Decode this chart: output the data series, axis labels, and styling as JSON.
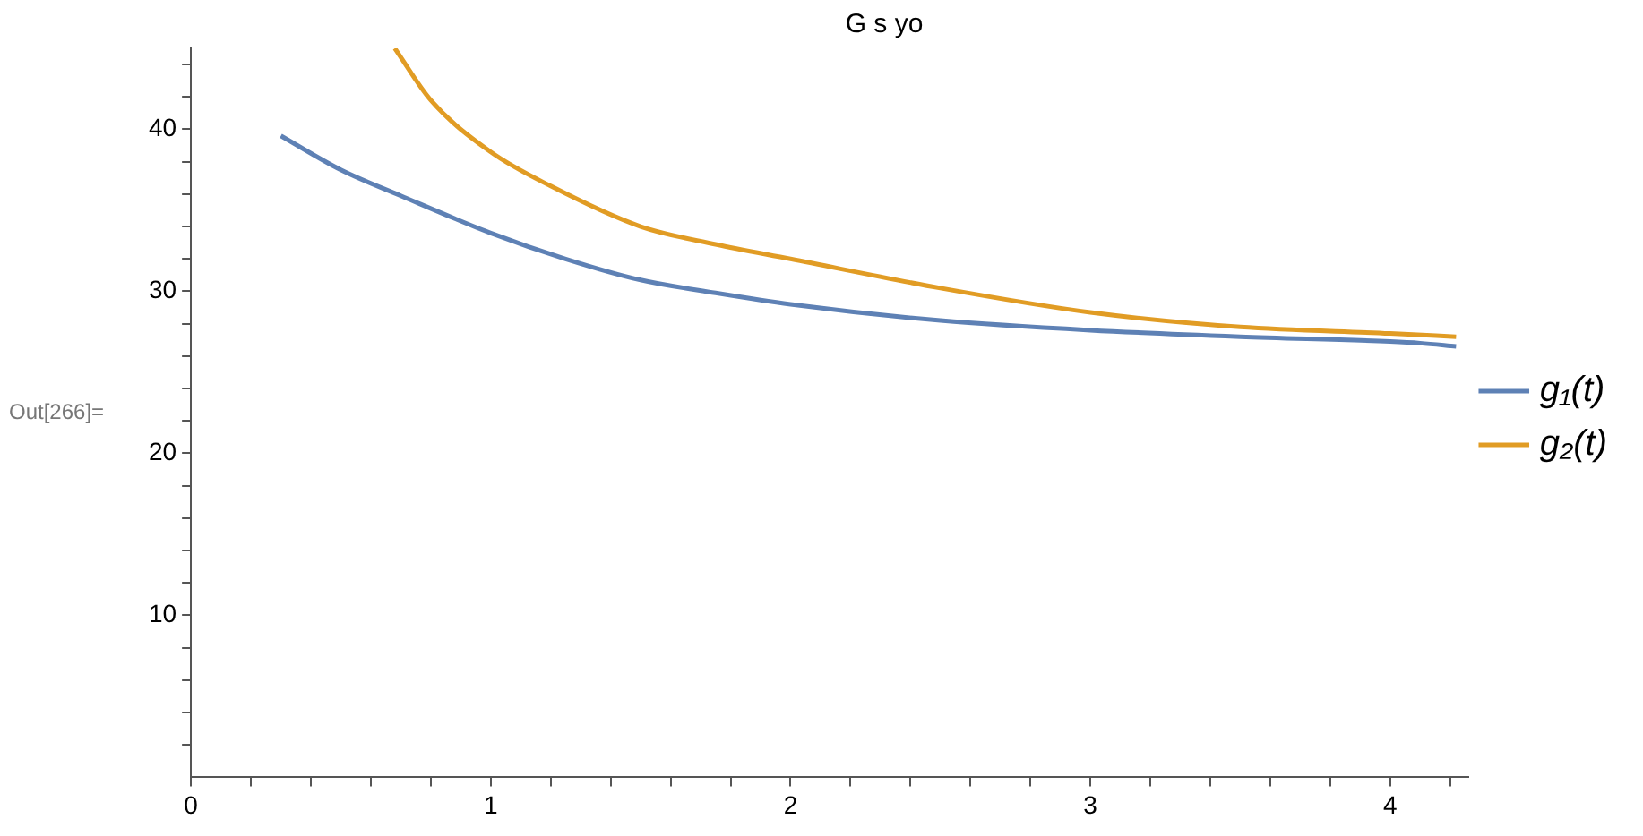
{
  "chart_data": {
    "type": "line",
    "title": "G s yo",
    "annotations": [
      "Out[266]="
    ],
    "xlim": [
      0,
      4.26
    ],
    "ylim": [
      0,
      45
    ],
    "xticks": [
      0,
      {
        "value": 0.2,
        "label": null
      },
      {
        "value": 0.4,
        "label": null
      },
      {
        "value": 0.6,
        "label": null
      },
      {
        "value": 0.8,
        "label": null
      },
      1,
      {
        "value": 1.2,
        "label": null
      },
      {
        "value": 1.4,
        "label": null
      },
      {
        "value": 1.6,
        "label": null
      },
      {
        "value": 1.8,
        "label": null
      },
      2,
      {
        "value": 2.2,
        "label": null
      },
      {
        "value": 2.4,
        "label": null
      },
      {
        "value": 2.6,
        "label": null
      },
      {
        "value": 2.8,
        "label": null
      },
      3,
      {
        "value": 3.2,
        "label": null
      },
      {
        "value": 3.4,
        "label": null
      },
      {
        "value": 3.6,
        "label": null
      },
      {
        "value": 3.8,
        "label": null
      },
      4,
      {
        "value": 4.2,
        "label": null
      }
    ],
    "yticks": [
      {
        "value": 2,
        "label": null
      },
      {
        "value": 4,
        "label": null
      },
      {
        "value": 6,
        "label": null
      },
      {
        "value": 8,
        "label": null
      },
      10,
      {
        "value": 12,
        "label": null
      },
      {
        "value": 14,
        "label": null
      },
      {
        "value": 16,
        "label": null
      },
      {
        "value": 18,
        "label": null
      },
      20,
      {
        "value": 22,
        "label": null
      },
      {
        "value": 24,
        "label": null
      },
      {
        "value": 26,
        "label": null
      },
      {
        "value": 28,
        "label": null
      },
      30,
      {
        "value": 32,
        "label": null
      },
      {
        "value": 34,
        "label": null
      },
      {
        "value": 36,
        "label": null
      },
      {
        "value": 38,
        "label": null
      },
      40,
      {
        "value": 42,
        "label": null
      },
      {
        "value": 44,
        "label": null
      }
    ],
    "grid": false,
    "legend": "right",
    "marker": "none",
    "line_style": "solid",
    "series": [
      {
        "name": "g₁(t)",
        "color": "#5e81b5",
        "x": [
          0.3,
          0.5,
          0.7,
          1,
          1.25,
          1.5,
          1.75,
          2,
          2.5,
          3,
          3.5,
          4,
          4.1,
          4.22
        ],
        "values": [
          39.6,
          37.5,
          35.9,
          33.6,
          32,
          30.7,
          29.9,
          29.2,
          28.2,
          27.6,
          27.2,
          26.9,
          26.8,
          26.6
        ]
      },
      {
        "name": "g₂(t)",
        "color": "#e19c24",
        "x": [
          0.68,
          0.8,
          1,
          1.2,
          1.5,
          1.75,
          2,
          2.5,
          3,
          3.5,
          4,
          4.22
        ],
        "values": [
          45,
          41.8,
          38.6,
          36.5,
          34,
          32.9,
          32,
          30.2,
          28.7,
          27.8,
          27.4,
          27.2
        ]
      }
    ]
  }
}
